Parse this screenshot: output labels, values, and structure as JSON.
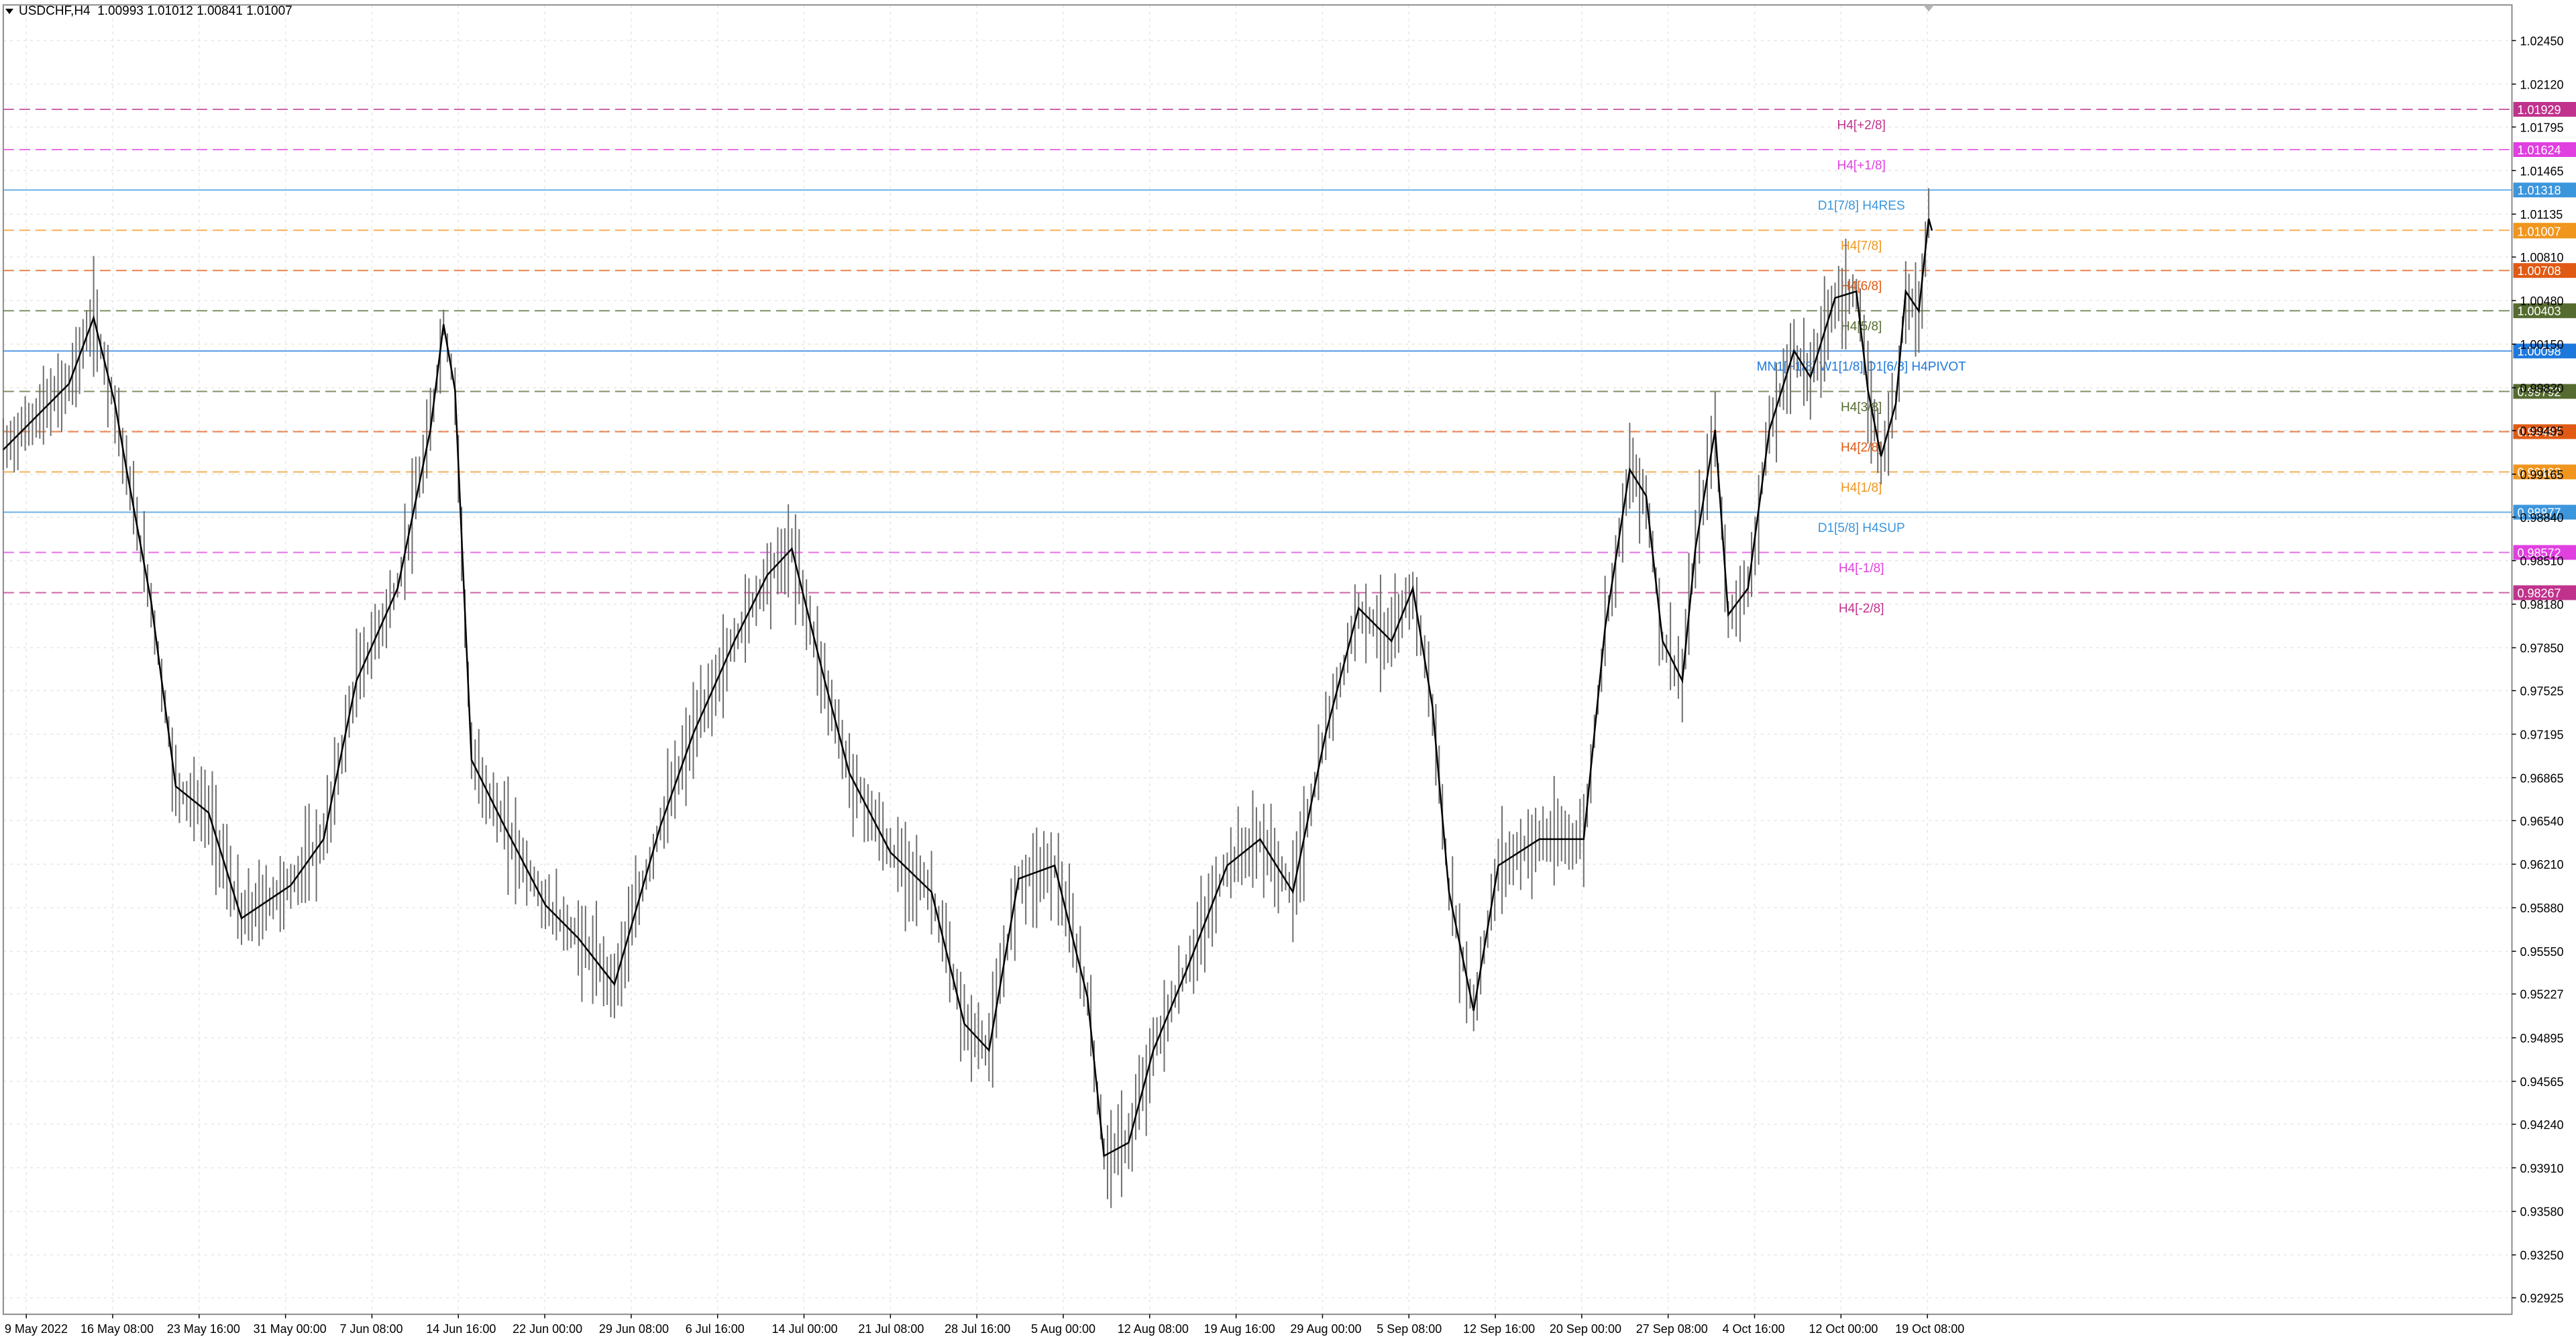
{
  "header": {
    "symbol_timeframe": "USDCHF,H4",
    "ohlc": "1.00993 1.01012 1.00841 1.01007"
  },
  "chart_data": {
    "type": "candlestick",
    "symbol": "USDCHF",
    "timeframe": "H4",
    "ylim": [
      0.928,
      1.0272
    ],
    "y_ticks": [
      "1.02450",
      "1.02120",
      "1.01795",
      "1.01465",
      "1.01135",
      "1.00810",
      "1.00480",
      "1.00150",
      "0.99820",
      "0.99495",
      "0.99165",
      "0.98840",
      "0.98510",
      "0.98180",
      "0.97850",
      "0.97525",
      "0.97195",
      "0.96865",
      "0.96540",
      "0.96210",
      "0.95880",
      "0.95550",
      "0.95227",
      "0.94895",
      "0.94565",
      "0.94240",
      "0.93910",
      "0.93580",
      "0.93250",
      "0.92925"
    ],
    "x_labels": [
      "9 May 2022",
      "16 May 08:00",
      "23 May 16:00",
      "31 May 00:00",
      "7 Jun 08:00",
      "14 Jun 16:00",
      "22 Jun 00:00",
      "29 Jun 08:00",
      "6 Jul 16:00",
      "14 Jul 00:00",
      "21 Jul 08:00",
      "28 Jul 16:00",
      "5 Aug 00:00",
      "12 Aug 08:00",
      "19 Aug 16:00",
      "29 Aug 00:00",
      "5 Sep 08:00",
      "12 Sep 16:00",
      "20 Sep 00:00",
      "27 Sep 08:00",
      "4 Oct 16:00",
      "12 Oct 00:00",
      "19 Oct 08:00"
    ],
    "close_path": [
      {
        "x": 0,
        "y": 0.9935
      },
      {
        "x": 40,
        "y": 0.9985
      },
      {
        "x": 55,
        "y": 1.0035
      },
      {
        "x": 68,
        "y": 0.997
      },
      {
        "x": 75,
        "y": 0.992
      },
      {
        "x": 90,
        "y": 0.982
      },
      {
        "x": 105,
        "y": 0.968
      },
      {
        "x": 125,
        "y": 0.966
      },
      {
        "x": 145,
        "y": 0.958
      },
      {
        "x": 175,
        "y": 0.9605
      },
      {
        "x": 195,
        "y": 0.964
      },
      {
        "x": 215,
        "y": 0.976
      },
      {
        "x": 240,
        "y": 0.983
      },
      {
        "x": 260,
        "y": 0.995
      },
      {
        "x": 268,
        "y": 1.003
      },
      {
        "x": 275,
        "y": 0.998
      },
      {
        "x": 285,
        "y": 0.97
      },
      {
        "x": 305,
        "y": 0.965
      },
      {
        "x": 330,
        "y": 0.959
      },
      {
        "x": 350,
        "y": 0.9565
      },
      {
        "x": 372,
        "y": 0.953
      },
      {
        "x": 400,
        "y": 0.965
      },
      {
        "x": 420,
        "y": 0.972
      },
      {
        "x": 445,
        "y": 0.979
      },
      {
        "x": 465,
        "y": 0.984
      },
      {
        "x": 480,
        "y": 0.986
      },
      {
        "x": 500,
        "y": 0.976
      },
      {
        "x": 515,
        "y": 0.969
      },
      {
        "x": 540,
        "y": 0.963
      },
      {
        "x": 565,
        "y": 0.96
      },
      {
        "x": 585,
        "y": 0.95
      },
      {
        "x": 600,
        "y": 0.948
      },
      {
        "x": 618,
        "y": 0.961
      },
      {
        "x": 640,
        "y": 0.962
      },
      {
        "x": 660,
        "y": 0.952
      },
      {
        "x": 670,
        "y": 0.94
      },
      {
        "x": 685,
        "y": 0.941
      },
      {
        "x": 700,
        "y": 0.948
      },
      {
        "x": 720,
        "y": 0.954
      },
      {
        "x": 745,
        "y": 0.962
      },
      {
        "x": 765,
        "y": 0.964
      },
      {
        "x": 785,
        "y": 0.96
      },
      {
        "x": 805,
        "y": 0.972
      },
      {
        "x": 825,
        "y": 0.9815
      },
      {
        "x": 845,
        "y": 0.979
      },
      {
        "x": 858,
        "y": 0.983
      },
      {
        "x": 870,
        "y": 0.974
      },
      {
        "x": 880,
        "y": 0.96
      },
      {
        "x": 895,
        "y": 0.951
      },
      {
        "x": 910,
        "y": 0.962
      },
      {
        "x": 935,
        "y": 0.964
      },
      {
        "x": 962,
        "y": 0.964
      },
      {
        "x": 975,
        "y": 0.98
      },
      {
        "x": 990,
        "y": 0.992
      },
      {
        "x": 1000,
        "y": 0.99
      },
      {
        "x": 1010,
        "y": 0.979
      },
      {
        "x": 1022,
        "y": 0.976
      },
      {
        "x": 1030,
        "y": 0.986
      },
      {
        "x": 1042,
        "y": 0.995
      },
      {
        "x": 1050,
        "y": 0.981
      },
      {
        "x": 1062,
        "y": 0.983
      },
      {
        "x": 1075,
        "y": 0.995
      },
      {
        "x": 1090,
        "y": 1.001
      },
      {
        "x": 1100,
        "y": 0.999
      },
      {
        "x": 1115,
        "y": 1.005
      },
      {
        "x": 1128,
        "y": 1.0055
      },
      {
        "x": 1135,
        "y": 0.998
      },
      {
        "x": 1143,
        "y": 0.993
      },
      {
        "x": 1152,
        "y": 0.997
      },
      {
        "x": 1158,
        "y": 1.0055
      },
      {
        "x": 1166,
        "y": 1.004
      },
      {
        "x": 1172,
        "y": 1.011
      },
      {
        "x": 1174,
        "y": 1.0101
      }
    ],
    "levels": [
      {
        "label": "H4[+2/8]",
        "value": "1.01929",
        "color": "#c0328c",
        "style": "dashed"
      },
      {
        "label": "H4[+1/8]",
        "value": "1.01624",
        "color": "#e040e0",
        "style": "dashed"
      },
      {
        "label": "D1[7/8] H4RES",
        "value": "1.01318",
        "color": "#3c96dc",
        "style": "solid"
      },
      {
        "label": "H4[7/8]",
        "value": "1.01013",
        "color": "#f0961e",
        "style": "dashed"
      },
      {
        "label": "H4[6/8]",
        "value": "1.00708",
        "color": "#e05a14",
        "style": "dashed"
      },
      {
        "label": "H4[5/8]",
        "value": "1.00403",
        "color": "#556b2f",
        "style": "dashed"
      },
      {
        "label": "MN1[+1/8] W1[1/8] D1[6/8] H4PIVOT",
        "value": "1.00098",
        "color": "#1e78dc",
        "style": "solid"
      },
      {
        "label": "H4[3/8]",
        "value": "0.99792",
        "color": "#556b2f",
        "style": "dashed"
      },
      {
        "label": "H4[2/8]",
        "value": "0.99487",
        "color": "#e05a14",
        "style": "dashed"
      },
      {
        "label": "H4[1/8]",
        "value": "0.99182",
        "color": "#f0961e",
        "style": "dashed"
      },
      {
        "label": "D1[5/8] H4SUP",
        "value": "0.98877",
        "color": "#3c96dc",
        "style": "solid"
      },
      {
        "label": "H4[-1/8]",
        "value": "0.98572",
        "color": "#e040e0",
        "style": "dashed"
      },
      {
        "label": "H4[-2/8]",
        "value": "0.98267",
        "color": "#c0328c",
        "style": "dashed"
      }
    ],
    "current_price": "1.01007",
    "grid": true
  }
}
